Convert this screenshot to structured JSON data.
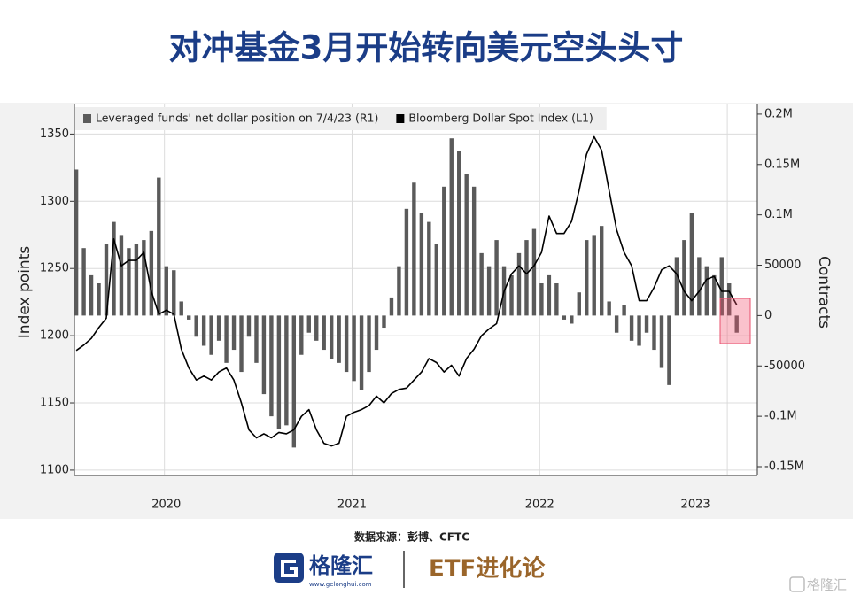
{
  "chart_data": {
    "type": "bar",
    "title": "对冲基金3月开始转向美元空头头寸",
    "ylabel": "Index points",
    "y2label": "Contracts",
    "legend": "upper-left",
    "grid": true,
    "xlim": [
      2020.02,
      2023.66
    ],
    "xticks": [
      {
        "value": 2020.5,
        "label": "2020"
      },
      {
        "value": 2021.5,
        "label": "2021"
      },
      {
        "value": 2022.5,
        "label": "2022"
      },
      {
        "value": 2023.5,
        "label": "2023"
      }
    ],
    "ylim": [
      1096,
      1372
    ],
    "yticks": [
      1100,
      1150,
      1200,
      1250,
      1300,
      1350
    ],
    "y2lim": [
      -158800,
      209600
    ],
    "y2ticks": [
      {
        "value": -150000,
        "label": "-0.15M"
      },
      {
        "value": -100000,
        "label": "-0.1M"
      },
      -50000,
      0,
      50000,
      {
        "value": 100000,
        "label": "0.1M"
      },
      {
        "value": 150000,
        "label": "0.15M"
      },
      {
        "value": 200000,
        "label": "0.2M"
      }
    ],
    "x": [
      2020.03,
      2020.07,
      2020.11,
      2020.15,
      2020.19,
      2020.23,
      2020.27,
      2020.31,
      2020.35,
      2020.39,
      2020.43,
      2020.47,
      2020.51,
      2020.55,
      2020.59,
      2020.63,
      2020.67,
      2020.71,
      2020.75,
      2020.79,
      2020.83,
      2020.87,
      2020.91,
      2020.95,
      2020.99,
      2021.03,
      2021.07,
      2021.11,
      2021.15,
      2021.19,
      2021.23,
      2021.27,
      2021.31,
      2021.35,
      2021.39,
      2021.43,
      2021.47,
      2021.51,
      2021.55,
      2021.59,
      2021.63,
      2021.67,
      2021.71,
      2021.75,
      2021.79,
      2021.83,
      2021.87,
      2021.91,
      2021.95,
      2021.99,
      2022.03,
      2022.07,
      2022.11,
      2022.15,
      2022.19,
      2022.23,
      2022.27,
      2022.31,
      2022.35,
      2022.39,
      2022.43,
      2022.47,
      2022.51,
      2022.55,
      2022.59,
      2022.63,
      2022.67,
      2022.71,
      2022.75,
      2022.79,
      2022.83,
      2022.87,
      2022.91,
      2022.95,
      2022.99,
      2023.03,
      2023.07,
      2023.11,
      2023.15,
      2023.19,
      2023.23,
      2023.27,
      2023.31,
      2023.35,
      2023.39,
      2023.43,
      2023.47,
      2023.51,
      2023.55
    ],
    "series": [
      {
        "name": "Leveraged funds' net dollar position on 7/4/23 (R1)",
        "type": "bar",
        "axis": "y2",
        "color": "#5a5a5a",
        "values": [
          145000,
          67000,
          40000,
          32000,
          71000,
          93000,
          80000,
          67000,
          71000,
          75000,
          84000,
          137000,
          49000,
          45000,
          14000,
          -4000,
          -21000,
          -30000,
          -39000,
          -25000,
          -47000,
          -34000,
          -56000,
          -21000,
          -47000,
          -78000,
          -100000,
          -113000,
          -109000,
          -131000,
          -39000,
          -17000,
          -25000,
          -34000,
          -43000,
          -47000,
          -56000,
          -65000,
          -74000,
          -56000,
          -34000,
          -12000,
          18000,
          49000,
          106000,
          132000,
          102000,
          93000,
          71000,
          128000,
          176000,
          163000,
          141000,
          128000,
          62000,
          49000,
          75000,
          49000,
          40000,
          62000,
          75000,
          86000,
          32000,
          40000,
          32000,
          -4000,
          -8000,
          23000,
          75000,
          80000,
          89000,
          14000,
          -17000,
          10000,
          -25000,
          -30000,
          -17000,
          -34000,
          -52000,
          -69000,
          58000,
          75000,
          102000,
          58000,
          49000,
          40000,
          58000,
          32000,
          -17000
        ]
      },
      {
        "name": "Bloomberg Dollar Spot Index (L1)",
        "type": "line",
        "color": "#000000",
        "values": [
          1189,
          1193,
          1198,
          1206,
          1213,
          1272,
          1252,
          1256,
          1256,
          1262,
          1233,
          1216,
          1219,
          1216,
          1190,
          1176,
          1167,
          1170,
          1167,
          1173,
          1176,
          1167,
          1150,
          1130,
          1124,
          1127,
          1124,
          1128,
          1127,
          1130,
          1140,
          1145,
          1130,
          1120,
          1118,
          1120,
          1140,
          1143,
          1145,
          1148,
          1155,
          1150,
          1157,
          1160,
          1161,
          1167,
          1173,
          1183,
          1180,
          1173,
          1178,
          1170,
          1183,
          1190,
          1200,
          1205,
          1209,
          1233,
          1246,
          1252,
          1246,
          1252,
          1262,
          1289,
          1276,
          1276,
          1285,
          1308,
          1335,
          1348,
          1338,
          1308,
          1279,
          1262,
          1252,
          1226,
          1226,
          1236,
          1249,
          1252,
          1246,
          1233,
          1226,
          1233,
          1242,
          1244,
          1233,
          1233,
          1223
        ]
      }
    ]
  },
  "source": "数据来源：彭博、CFTC",
  "brand": {
    "name": "格隆汇",
    "url": "www.gelonghui.com",
    "partner": "ETF进化论",
    "watermark": "格隆汇"
  }
}
